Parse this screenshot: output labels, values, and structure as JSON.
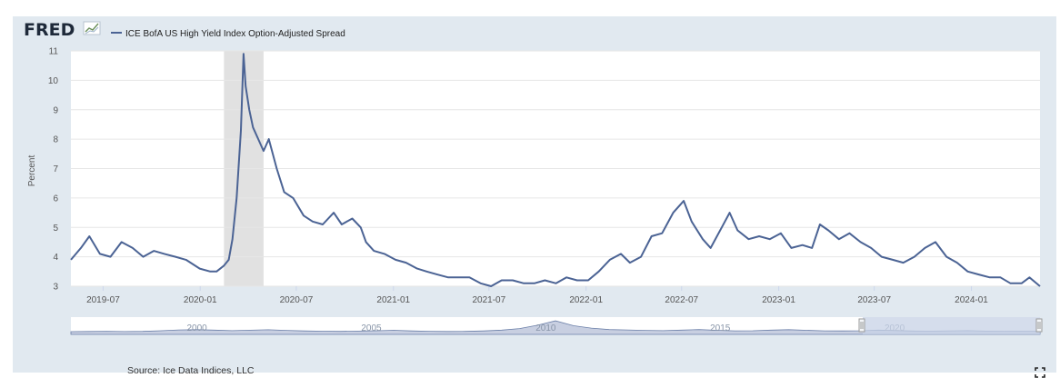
{
  "legend": {
    "series_name": "ICE BofA US High Yield Index Option-Adjusted Spread"
  },
  "footer": {
    "source": "Source: Ice Data Indices, LLC"
  },
  "colors": {
    "series": "#4b6394",
    "recession": "#e1e1e1",
    "frame": "#e1e9f0",
    "nav_fill": "#9aa8c8",
    "nav_selection": "#c7d2e5"
  },
  "logo": {
    "text": "FRED"
  },
  "navigator": {
    "tick_labels": [
      "2000",
      "2005",
      "2010",
      "2015",
      "2020"
    ]
  },
  "chart_data": {
    "type": "line",
    "title": "",
    "xlabel": "",
    "ylabel": "Percent",
    "ylim": [
      3,
      11
    ],
    "xlim": [
      "2019-05-01",
      "2024-05-10"
    ],
    "yticks": [
      3,
      4,
      5,
      6,
      7,
      8,
      9,
      10,
      11
    ],
    "xtick_labels": [
      "2019-07",
      "2020-01",
      "2020-07",
      "2021-01",
      "2021-07",
      "2022-01",
      "2022-07",
      "2023-01",
      "2023-07",
      "2024-01"
    ],
    "recession_band": [
      "2020-02-15",
      "2020-04-30"
    ],
    "grid": true,
    "legend_position": "top-left",
    "series": [
      {
        "name": "ICE BofA US High Yield Index Option-Adjusted Spread",
        "x": [
          "2019-05-01",
          "2019-05-20",
          "2019-06-05",
          "2019-06-25",
          "2019-07-15",
          "2019-08-05",
          "2019-08-26",
          "2019-09-15",
          "2019-10-05",
          "2019-10-25",
          "2019-11-15",
          "2019-12-05",
          "2019-12-31",
          "2020-01-20",
          "2020-02-01",
          "2020-02-15",
          "2020-02-24",
          "2020-03-02",
          "2020-03-10",
          "2020-03-18",
          "2020-03-23",
          "2020-03-27",
          "2020-04-03",
          "2020-04-10",
          "2020-04-20",
          "2020-04-30",
          "2020-05-10",
          "2020-05-25",
          "2020-06-08",
          "2020-06-25",
          "2020-07-15",
          "2020-08-01",
          "2020-08-20",
          "2020-09-10",
          "2020-09-25",
          "2020-10-15",
          "2020-10-31",
          "2020-11-10",
          "2020-11-25",
          "2020-12-15",
          "2021-01-05",
          "2021-01-25",
          "2021-02-15",
          "2021-03-05",
          "2021-03-25",
          "2021-04-15",
          "2021-05-05",
          "2021-05-25",
          "2021-06-15",
          "2021-07-05",
          "2021-07-25",
          "2021-08-15",
          "2021-09-05",
          "2021-09-25",
          "2021-10-15",
          "2021-11-05",
          "2021-11-25",
          "2021-12-15",
          "2022-01-05",
          "2022-01-25",
          "2022-02-15",
          "2022-03-08",
          "2022-03-25",
          "2022-04-15",
          "2022-05-05",
          "2022-05-25",
          "2022-06-15",
          "2022-07-05",
          "2022-07-20",
          "2022-08-10",
          "2022-08-25",
          "2022-09-15",
          "2022-09-30",
          "2022-10-15",
          "2022-11-05",
          "2022-11-25",
          "2022-12-15",
          "2023-01-05",
          "2023-01-25",
          "2023-02-15",
          "2023-03-05",
          "2023-03-20",
          "2023-04-05",
          "2023-04-25",
          "2023-05-15",
          "2023-06-05",
          "2023-06-25",
          "2023-07-15",
          "2023-08-05",
          "2023-08-25",
          "2023-09-15",
          "2023-10-05",
          "2023-10-25",
          "2023-11-15",
          "2023-12-05",
          "2023-12-25",
          "2024-01-15",
          "2024-02-05",
          "2024-02-25",
          "2024-03-15",
          "2024-04-05",
          "2024-04-20",
          "2024-05-10"
        ],
        "values": [
          3.9,
          4.3,
          4.7,
          4.1,
          4.0,
          4.5,
          4.3,
          4.0,
          4.2,
          4.1,
          4.0,
          3.9,
          3.6,
          3.5,
          3.5,
          3.7,
          3.9,
          4.6,
          6.0,
          8.3,
          10.9,
          9.8,
          9.0,
          8.4,
          8.0,
          7.6,
          8.0,
          7.0,
          6.2,
          6.0,
          5.4,
          5.2,
          5.1,
          5.5,
          5.1,
          5.3,
          5.0,
          4.5,
          4.2,
          4.1,
          3.9,
          3.8,
          3.6,
          3.5,
          3.4,
          3.3,
          3.3,
          3.3,
          3.1,
          3.0,
          3.2,
          3.2,
          3.1,
          3.1,
          3.2,
          3.1,
          3.3,
          3.2,
          3.2,
          3.5,
          3.9,
          4.1,
          3.8,
          4.0,
          4.7,
          4.8,
          5.5,
          5.9,
          5.2,
          4.6,
          4.3,
          5.0,
          5.5,
          4.9,
          4.6,
          4.7,
          4.6,
          4.8,
          4.3,
          4.4,
          4.3,
          5.1,
          4.9,
          4.6,
          4.8,
          4.5,
          4.3,
          4.0,
          3.9,
          3.8,
          4.0,
          4.3,
          4.5,
          4.0,
          3.8,
          3.5,
          3.4,
          3.3,
          3.3,
          3.1,
          3.1,
          3.3,
          3.0
        ]
      }
    ]
  }
}
